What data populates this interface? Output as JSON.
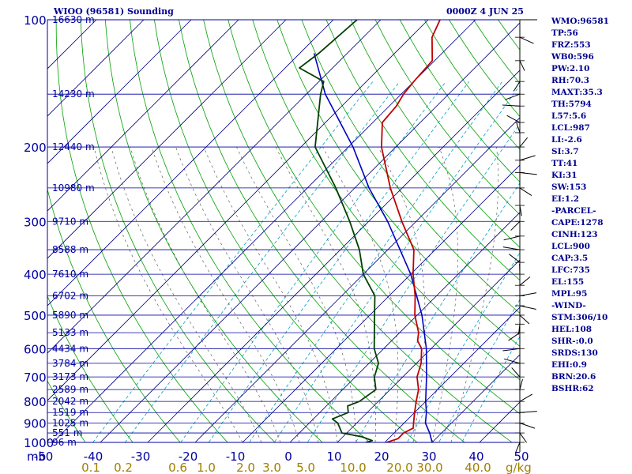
{
  "header": {
    "station": "WIOO (96581) Sounding",
    "time": "0000Z  4 JUN 25"
  },
  "stats": [
    "WMO:96581",
    "TP:56",
    "FRZ:553",
    "WB0:596",
    "PW:2.10",
    "RH:70.3",
    "MAXT:35.3",
    "TH:5794",
    "L57:5.6",
    "LCL:987",
    "LI:-2.6",
    "SI:3.7",
    "TT:41",
    "KI:31",
    "SW:153",
    "EI:1.2",
    "-PARCEL-",
    "CAPE:1278",
    "CINH:123",
    "LCL:900",
    "CAP:3.5",
    "LFC:735",
    "EL:155",
    "MPL:95",
    "-WIND-",
    "STM:306/10",
    "HEL:108",
    "SHR-:0.0",
    "SRDS:130",
    "EHI:0.9",
    "BRN:20.6",
    "BSHR:62"
  ],
  "colors": {
    "frame": "#0000a0",
    "isotherm": "#000080",
    "dry_adiabat": "#00a000",
    "mixing_ratio": "#00a0c0",
    "moist_adiabat": "#606060",
    "temperature": "#c00000",
    "dewpoint": "#004000",
    "parcel": "#0000c0"
  },
  "chart_data": {
    "type": "skew-t",
    "y_axis_scale": "log-pressure",
    "p_range": [
      1000,
      100
    ],
    "t_range": [
      -50,
      50
    ],
    "pressure_ticks": [
      100,
      200,
      300,
      400,
      500,
      600,
      700,
      800,
      900,
      1000
    ],
    "temperature_ticks": [
      "-50",
      "-40",
      "-30",
      "-20",
      "-10",
      "0",
      "10",
      "20",
      "30",
      "40",
      "50"
    ],
    "mixing_ratio_ticks": [
      "0.1",
      "0.2",
      "0.6",
      "1.0",
      "2.0",
      "3.0",
      "5.0",
      "10.0",
      "20.0",
      "30.0",
      "40.0"
    ],
    "mixing_ratio_unit": "g/kg",
    "height_labels": [
      {
        "p": 100,
        "label": "16630 m"
      },
      {
        "p": 150,
        "label": "14230 m"
      },
      {
        "p": 200,
        "label": "12440 m"
      },
      {
        "p": 250,
        "label": "10980 m"
      },
      {
        "p": 300,
        "label": "9710 m"
      },
      {
        "p": 350,
        "label": "8588 m"
      },
      {
        "p": 400,
        "label": "7610 m"
      },
      {
        "p": 450,
        "label": "6702 m"
      },
      {
        "p": 500,
        "label": "5890 m"
      },
      {
        "p": 550,
        "label": "5133 m"
      },
      {
        "p": 600,
        "label": "4434 m"
      },
      {
        "p": 650,
        "label": "3784 m"
      },
      {
        "p": 700,
        "label": "3173 m"
      },
      {
        "p": 750,
        "label": "2589 m"
      },
      {
        "p": 800,
        "label": "2042 m"
      },
      {
        "p": 850,
        "label": "1519 m"
      },
      {
        "p": 900,
        "label": "1025 m"
      },
      {
        "p": 950,
        "label": "551 m"
      },
      {
        "p": 1000,
        "label": "96 m"
      }
    ],
    "temperature": [
      [
        1000,
        20.4
      ],
      [
        980,
        22.0
      ],
      [
        950,
        22.0
      ],
      [
        925,
        23.0
      ],
      [
        900,
        22.0
      ],
      [
        850,
        20.0
      ],
      [
        800,
        18.0
      ],
      [
        750,
        16.0
      ],
      [
        700,
        13.0
      ],
      [
        650,
        11.0
      ],
      [
        600,
        8.0
      ],
      [
        575,
        5.5
      ],
      [
        550,
        4.0
      ],
      [
        500,
        -0.5
      ],
      [
        450,
        -4.5
      ],
      [
        400,
        -9.5
      ],
      [
        350,
        -14.5
      ],
      [
        300,
        -23.0
      ],
      [
        250,
        -32.5
      ],
      [
        200,
        -43.0
      ],
      [
        175,
        -48.0
      ],
      [
        160,
        -48.5
      ],
      [
        150,
        -49.5
      ],
      [
        140,
        -50.0
      ],
      [
        125,
        -50.5
      ],
      [
        110,
        -55.5
      ],
      [
        100,
        -57.5
      ]
    ],
    "dewpoint": [
      [
        1000,
        16.0
      ],
      [
        990,
        17.0
      ],
      [
        970,
        14.0
      ],
      [
        950,
        9.0
      ],
      [
        900,
        6.0
      ],
      [
        880,
        4.0
      ],
      [
        850,
        6.0
      ],
      [
        820,
        4.5
      ],
      [
        800,
        6.0
      ],
      [
        750,
        7.0
      ],
      [
        700,
        4.0
      ],
      [
        650,
        2.0
      ],
      [
        600,
        -2.0
      ],
      [
        500,
        -9.0
      ],
      [
        450,
        -13.0
      ],
      [
        400,
        -20.0
      ],
      [
        350,
        -26.0
      ],
      [
        300,
        -34.0
      ],
      [
        250,
        -44.0
      ],
      [
        200,
        -57.0
      ],
      [
        150,
        -67.0
      ],
      [
        140,
        -69.0
      ],
      [
        130,
        -77.0
      ],
      [
        120,
        -76.0
      ],
      [
        100,
        -75.0
      ]
    ],
    "parcel": [
      [
        1000,
        30.0
      ],
      [
        950,
        27.5
      ],
      [
        900,
        24.5
      ],
      [
        850,
        22.5
      ],
      [
        800,
        20.0
      ],
      [
        700,
        15.0
      ],
      [
        600,
        9.0
      ],
      [
        500,
        1.0
      ],
      [
        400,
        -10.0
      ],
      [
        300,
        -26.0
      ],
      [
        250,
        -37.0
      ],
      [
        200,
        -49.0
      ],
      [
        150,
        -66.0
      ],
      [
        120,
        -77.0
      ]
    ]
  }
}
